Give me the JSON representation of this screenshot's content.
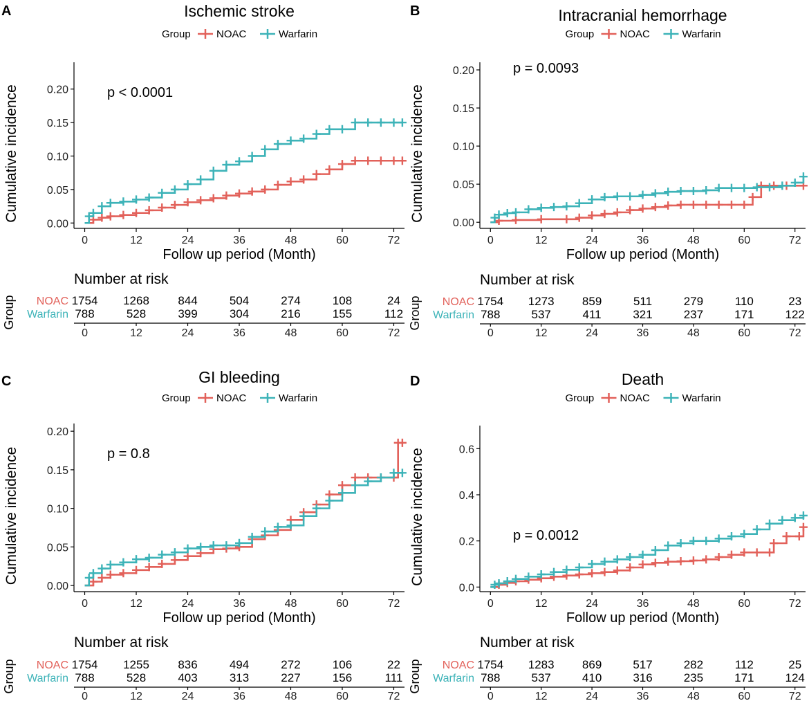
{
  "colors": {
    "NOAC": "#E2615A",
    "Warfarin": "#3DB3B8"
  },
  "legend": {
    "title": "Group",
    "entries": [
      "NOAC",
      "Warfarin"
    ]
  },
  "risk_table": {
    "title": "Number at risk",
    "ylabel": "Group",
    "groups": [
      "NOAC",
      "Warfarin"
    ]
  },
  "chart_data": [
    {
      "panel": "A",
      "type": "line",
      "title": "Ischemic stroke",
      "xlabel": "Follow up period (Month)",
      "ylabel": "Cumulative incidence",
      "xlim": [
        -2.5,
        74.5
      ],
      "ylim": [
        -0.008,
        0.24
      ],
      "xticks": [
        0,
        12,
        24,
        36,
        48,
        60,
        72
      ],
      "xtick_labels": [
        "0",
        "12",
        "24",
        "36",
        "48",
        "60",
        "72"
      ],
      "yticks": [
        0,
        0.05,
        0.1,
        0.15,
        0.2
      ],
      "ytick_labels": [
        "0.00",
        "0.05",
        "0.10",
        "0.15",
        "0.20"
      ],
      "annotation": "p < 0.0001",
      "series": [
        {
          "name": "NOAC",
          "x": [
            0,
            2,
            4,
            6,
            9,
            12,
            15,
            18,
            21,
            24,
            27,
            30,
            33,
            36,
            39,
            42,
            45,
            48,
            51,
            54,
            57,
            60,
            63,
            66,
            69,
            72,
            74
          ],
          "y": [
            0,
            0.005,
            0.008,
            0.01,
            0.012,
            0.015,
            0.019,
            0.023,
            0.027,
            0.031,
            0.034,
            0.037,
            0.041,
            0.044,
            0.047,
            0.05,
            0.057,
            0.062,
            0.065,
            0.073,
            0.08,
            0.088,
            0.093,
            0.093,
            0.093,
            0.093,
            0.093
          ]
        },
        {
          "name": "Warfarin",
          "x": [
            0,
            1,
            2,
            4,
            6,
            9,
            12,
            15,
            18,
            21,
            24,
            27,
            30,
            33,
            36,
            39,
            42,
            45,
            48,
            51,
            54,
            57,
            60,
            63,
            66,
            69,
            72,
            74
          ],
          "y": [
            0,
            0.01,
            0.015,
            0.025,
            0.03,
            0.032,
            0.035,
            0.038,
            0.045,
            0.05,
            0.058,
            0.065,
            0.078,
            0.087,
            0.092,
            0.1,
            0.11,
            0.118,
            0.123,
            0.126,
            0.133,
            0.14,
            0.14,
            0.15,
            0.15,
            0.15,
            0.15,
            0.15
          ]
        }
      ],
      "risk_times": [
        0,
        12,
        24,
        36,
        48,
        60,
        72
      ],
      "risk_NOAC": [
        "1754",
        "1268",
        "844",
        "504",
        "274",
        "108",
        "24"
      ],
      "risk_Warfarin": [
        "788",
        "528",
        "399",
        "304",
        "216",
        "155",
        "112"
      ]
    },
    {
      "panel": "B",
      "type": "line",
      "title": "Intracranial hemorrhage",
      "xlabel": "Follow up period (Month)",
      "ylabel": "Cumulative incidence",
      "xlim": [
        -2.5,
        74.5
      ],
      "ylim": [
        -0.008,
        0.21
      ],
      "xticks": [
        0,
        12,
        24,
        36,
        48,
        60,
        72
      ],
      "xtick_labels": [
        "0",
        "12",
        "24",
        "36",
        "48",
        "60",
        "72"
      ],
      "yticks": [
        0,
        0.05,
        0.1,
        0.15,
        0.2
      ],
      "ytick_labels": [
        "0.00",
        "0.05",
        "0.10",
        "0.15",
        "0.20"
      ],
      "annotation": "p = 0.0093",
      "series": [
        {
          "name": "NOAC",
          "x": [
            0,
            2,
            6,
            12,
            18,
            21,
            24,
            27,
            30,
            33,
            36,
            39,
            42,
            45,
            48,
            51,
            54,
            57,
            60,
            62,
            64,
            67,
            70,
            74
          ],
          "y": [
            0,
            0.002,
            0.003,
            0.004,
            0.004,
            0.006,
            0.009,
            0.011,
            0.013,
            0.016,
            0.018,
            0.02,
            0.022,
            0.023,
            0.023,
            0.023,
            0.023,
            0.023,
            0.023,
            0.033,
            0.048,
            0.048,
            0.048,
            0.048
          ]
        },
        {
          "name": "Warfarin",
          "x": [
            0,
            1,
            2,
            4,
            6,
            9,
            12,
            15,
            18,
            21,
            24,
            27,
            30,
            33,
            36,
            39,
            42,
            45,
            48,
            51,
            54,
            57,
            60,
            63,
            66,
            69,
            72,
            74
          ],
          "y": [
            0,
            0.006,
            0.01,
            0.012,
            0.013,
            0.017,
            0.019,
            0.02,
            0.021,
            0.025,
            0.03,
            0.033,
            0.034,
            0.034,
            0.036,
            0.038,
            0.04,
            0.041,
            0.041,
            0.042,
            0.045,
            0.045,
            0.045,
            0.046,
            0.046,
            0.048,
            0.052,
            0.06
          ]
        }
      ],
      "risk_times": [
        0,
        12,
        24,
        36,
        48,
        60,
        72
      ],
      "risk_NOAC": [
        "1754",
        "1273",
        "859",
        "511",
        "279",
        "110",
        "23"
      ],
      "risk_Warfarin": [
        "788",
        "537",
        "411",
        "321",
        "237",
        "171",
        "122"
      ]
    },
    {
      "panel": "C",
      "type": "line",
      "title": "GI bleeding",
      "xlabel": "Follow up period (Month)",
      "ylabel": "Cumulative incidence",
      "xlim": [
        -2.5,
        74.5
      ],
      "ylim": [
        -0.008,
        0.21
      ],
      "xticks": [
        0,
        12,
        24,
        36,
        48,
        60,
        72
      ],
      "xtick_labels": [
        "0",
        "12",
        "24",
        "36",
        "48",
        "60",
        "72"
      ],
      "yticks": [
        0,
        0.05,
        0.1,
        0.15,
        0.2
      ],
      "ytick_labels": [
        "0.00",
        "0.05",
        "0.10",
        "0.15",
        "0.20"
      ],
      "annotation": "p = 0.8",
      "series": [
        {
          "name": "NOAC",
          "x": [
            0,
            2,
            4,
            6,
            9,
            12,
            15,
            18,
            21,
            24,
            27,
            30,
            33,
            36,
            39,
            42,
            45,
            48,
            51,
            54,
            57,
            60,
            63,
            66,
            69,
            72,
            73,
            74
          ],
          "y": [
            0,
            0.005,
            0.01,
            0.014,
            0.016,
            0.02,
            0.024,
            0.028,
            0.033,
            0.038,
            0.042,
            0.047,
            0.048,
            0.05,
            0.06,
            0.065,
            0.072,
            0.085,
            0.095,
            0.105,
            0.118,
            0.13,
            0.14,
            0.14,
            0.14,
            0.14,
            0.185,
            0.185
          ]
        },
        {
          "name": "Warfarin",
          "x": [
            0,
            1,
            2,
            4,
            6,
            9,
            12,
            15,
            18,
            21,
            24,
            27,
            30,
            33,
            36,
            39,
            42,
            45,
            48,
            51,
            54,
            57,
            60,
            63,
            66,
            69,
            72,
            74
          ],
          "y": [
            0,
            0.01,
            0.016,
            0.022,
            0.027,
            0.03,
            0.034,
            0.036,
            0.04,
            0.043,
            0.048,
            0.05,
            0.052,
            0.052,
            0.055,
            0.063,
            0.07,
            0.076,
            0.078,
            0.09,
            0.1,
            0.11,
            0.12,
            0.13,
            0.135,
            0.14,
            0.146,
            0.146
          ]
        }
      ],
      "risk_times": [
        0,
        12,
        24,
        36,
        48,
        60,
        72
      ],
      "risk_NOAC": [
        "1754",
        "1255",
        "836",
        "494",
        "272",
        "106",
        "22"
      ],
      "risk_Warfarin": [
        "788",
        "528",
        "403",
        "313",
        "227",
        "156",
        "111"
      ]
    },
    {
      "panel": "D",
      "type": "line",
      "title": "Death",
      "xlabel": "Follow up period (Month)",
      "ylabel": "Cumulative incidence",
      "xlim": [
        -2.5,
        74.5
      ],
      "ylim": [
        -0.02,
        0.7
      ],
      "xticks": [
        0,
        12,
        24,
        36,
        48,
        60,
        72
      ],
      "xtick_labels": [
        "0",
        "12",
        "24",
        "36",
        "48",
        "60",
        "72"
      ],
      "yticks": [
        0,
        0.2,
        0.4,
        0.6
      ],
      "ytick_labels": [
        "0.0",
        "0.2",
        "0.4",
        "0.6"
      ],
      "annotation": "p = 0.0012",
      "series": [
        {
          "name": "NOAC",
          "x": [
            0,
            2,
            4,
            6,
            9,
            12,
            15,
            18,
            21,
            24,
            27,
            30,
            33,
            36,
            39,
            42,
            45,
            48,
            51,
            54,
            57,
            60,
            63,
            66,
            67,
            70,
            73,
            74
          ],
          "y": [
            0,
            0.01,
            0.018,
            0.025,
            0.032,
            0.038,
            0.045,
            0.05,
            0.055,
            0.06,
            0.065,
            0.072,
            0.085,
            0.098,
            0.105,
            0.11,
            0.112,
            0.115,
            0.12,
            0.13,
            0.14,
            0.15,
            0.15,
            0.15,
            0.19,
            0.22,
            0.22,
            0.26
          ]
        },
        {
          "name": "Warfarin",
          "x": [
            0,
            1,
            2,
            4,
            6,
            9,
            12,
            15,
            18,
            21,
            24,
            27,
            30,
            33,
            36,
            39,
            42,
            45,
            48,
            51,
            54,
            57,
            60,
            63,
            66,
            69,
            72,
            74
          ],
          "y": [
            0,
            0.01,
            0.016,
            0.025,
            0.035,
            0.045,
            0.055,
            0.065,
            0.075,
            0.085,
            0.1,
            0.11,
            0.12,
            0.13,
            0.14,
            0.16,
            0.18,
            0.19,
            0.2,
            0.2,
            0.21,
            0.22,
            0.23,
            0.25,
            0.275,
            0.29,
            0.3,
            0.31
          ]
        }
      ],
      "risk_times": [
        0,
        12,
        24,
        36,
        48,
        60,
        72
      ],
      "risk_NOAC": [
        "1754",
        "1283",
        "869",
        "517",
        "282",
        "112",
        "25"
      ],
      "risk_Warfarin": [
        "788",
        "537",
        "410",
        "316",
        "235",
        "171",
        "124"
      ]
    }
  ]
}
